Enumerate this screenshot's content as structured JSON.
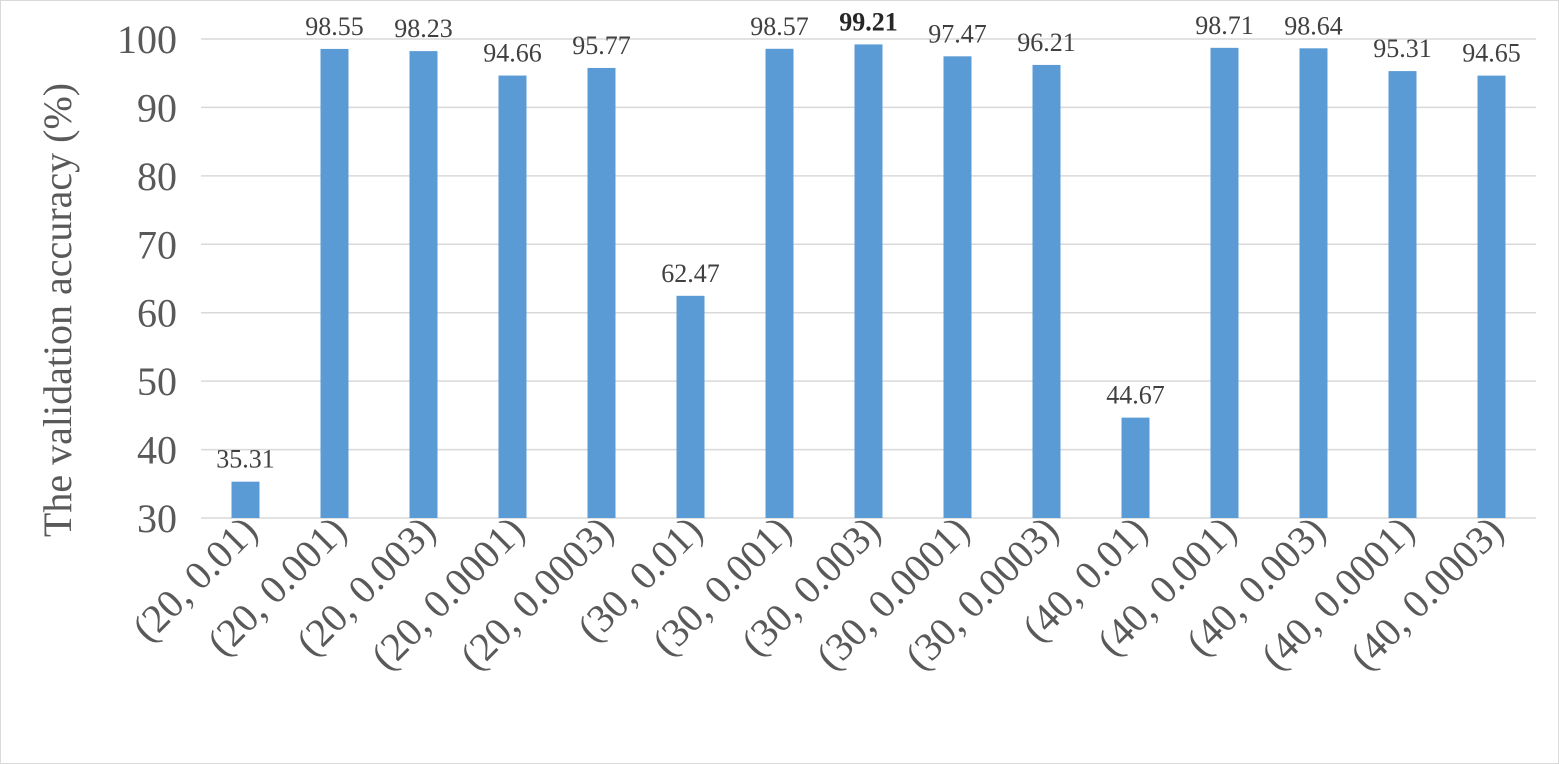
{
  "chart_data": {
    "type": "bar",
    "title": "",
    "xlabel": "",
    "ylabel": "The validation accuracy (%)",
    "ylim": [
      30,
      100
    ],
    "yticks": [
      30,
      40,
      50,
      60,
      70,
      80,
      90,
      100
    ],
    "grid": true,
    "legend": "none",
    "categories": [
      "(20, 0.01)",
      "(20, 0.001)",
      "(20, 0.003)",
      "(20, 0.0001)",
      "(20, 0.0003)",
      "(30, 0.01)",
      "(30, 0.001)",
      "(30, 0.003)",
      "(30, 0.0001)",
      "(30, 0.0003)",
      "(40, 0.01)",
      "(40, 0.001)",
      "(40, 0.003)",
      "(40, 0.0001)",
      "(40, 0.0003)"
    ],
    "values": [
      35.31,
      98.55,
      98.23,
      94.66,
      95.77,
      62.47,
      98.57,
      99.21,
      97.47,
      96.21,
      44.67,
      98.71,
      98.64,
      95.31,
      94.65
    ],
    "data_labels": [
      "35.31",
      "98.55",
      "98.23",
      "94.66",
      "95.77",
      "62.47",
      "98.57",
      "99.21",
      "97.47",
      "96.21",
      "44.67",
      "98.71",
      "98.64",
      "95.31",
      "94.65"
    ],
    "highlighted_index": 7,
    "colors": {
      "bar": "#5b9bd5",
      "grid": "#d9d9d9",
      "axis_text": "#595959",
      "label_text": "#404040"
    }
  }
}
